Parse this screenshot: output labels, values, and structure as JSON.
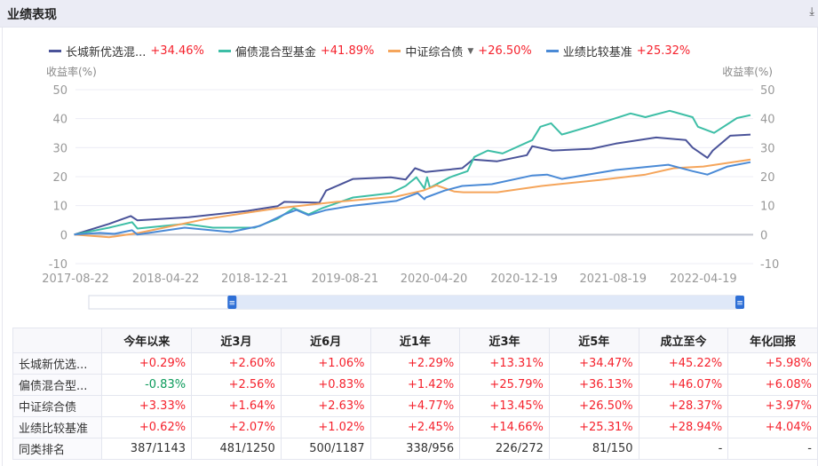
{
  "header": {
    "title": "业绩表现",
    "download_icon": "download-icon"
  },
  "legend": [
    {
      "name": "长城新优选混...",
      "pct": "+34.46%",
      "color": "#4a5399"
    },
    {
      "name": "偏债混合型基金",
      "pct": "+41.89%",
      "color": "#3dbea6"
    },
    {
      "name": "中证综合债",
      "pct": "+26.50%",
      "color": "#f5a55b",
      "has_dropdown": true
    },
    {
      "name": "业绩比较基准",
      "pct": "+25.32%",
      "color": "#4a8ad6"
    }
  ],
  "chart_data": {
    "type": "line",
    "ylabel_left": "收益率(%)",
    "ylabel_right": "收益率(%)",
    "ylim": [
      -10,
      50
    ],
    "yticks": [
      "50",
      "40",
      "30",
      "20",
      "10",
      "0",
      "-10"
    ],
    "xlim": [
      2017.64,
      2022.65
    ],
    "xticks": [
      {
        "label": "2017-08-22",
        "x": 2017.64
      },
      {
        "label": "2018-04-22",
        "x": 2018.31
      },
      {
        "label": "2018-12-21",
        "x": 2018.97
      },
      {
        "label": "2019-08-21",
        "x": 2019.64
      },
      {
        "label": "2020-04-20",
        "x": 2020.3
      },
      {
        "label": "2020-12-19",
        "x": 2020.97
      },
      {
        "label": "2021-08-19",
        "x": 2021.63
      },
      {
        "label": "2022-04-19",
        "x": 2022.3
      }
    ],
    "grid": true,
    "series": [
      {
        "name": "长城新优选混...",
        "color": "#4a5399",
        "points": [
          [
            2017.63,
            0
          ],
          [
            2017.89,
            3.7
          ],
          [
            2018.05,
            6.4
          ],
          [
            2018.1,
            4.9
          ],
          [
            2018.48,
            6
          ],
          [
            2018.92,
            8.2
          ],
          [
            2019.14,
            9.8
          ],
          [
            2019.19,
            11.3
          ],
          [
            2019.45,
            11
          ],
          [
            2019.5,
            15.2
          ],
          [
            2019.7,
            19.2
          ],
          [
            2019.98,
            19.8
          ],
          [
            2020.09,
            19
          ],
          [
            2020.16,
            22.9
          ],
          [
            2020.24,
            21.6
          ],
          [
            2020.51,
            22.9
          ],
          [
            2020.59,
            25.9
          ],
          [
            2020.77,
            25.3
          ],
          [
            2020.99,
            27.4
          ],
          [
            2021.03,
            30.5
          ],
          [
            2021.18,
            29
          ],
          [
            2021.47,
            29.6
          ],
          [
            2021.65,
            31.4
          ],
          [
            2021.95,
            33.5
          ],
          [
            2022.17,
            32.6
          ],
          [
            2022.22,
            30
          ],
          [
            2022.33,
            26.5
          ],
          [
            2022.37,
            29
          ],
          [
            2022.5,
            34.1
          ],
          [
            2022.65,
            34.5
          ]
        ]
      },
      {
        "name": "偏债混合型基金",
        "color": "#3dbea6",
        "points": [
          [
            2017.63,
            0
          ],
          [
            2017.89,
            2.4
          ],
          [
            2018.06,
            4.3
          ],
          [
            2018.1,
            2.1
          ],
          [
            2018.45,
            3.7
          ],
          [
            2018.66,
            2.4
          ],
          [
            2018.97,
            2.4
          ],
          [
            2019.14,
            5.5
          ],
          [
            2019.26,
            9.1
          ],
          [
            2019.37,
            7
          ],
          [
            2019.47,
            9.1
          ],
          [
            2019.7,
            12.8
          ],
          [
            2019.98,
            14.3
          ],
          [
            2020.09,
            16.8
          ],
          [
            2020.17,
            19.8
          ],
          [
            2020.23,
            15.9
          ],
          [
            2020.25,
            19.8
          ],
          [
            2020.27,
            16.2
          ],
          [
            2020.42,
            19.8
          ],
          [
            2020.55,
            21.9
          ],
          [
            2020.6,
            26.8
          ],
          [
            2020.7,
            29
          ],
          [
            2020.81,
            28
          ],
          [
            2021.03,
            32.6
          ],
          [
            2021.09,
            37.2
          ],
          [
            2021.17,
            38.4
          ],
          [
            2021.25,
            34.5
          ],
          [
            2021.47,
            37.5
          ],
          [
            2021.76,
            41.8
          ],
          [
            2021.87,
            40.5
          ],
          [
            2022.05,
            42.7
          ],
          [
            2022.22,
            40.5
          ],
          [
            2022.26,
            37.2
          ],
          [
            2022.38,
            35.1
          ],
          [
            2022.55,
            40.2
          ],
          [
            2022.65,
            41.2
          ]
        ]
      },
      {
        "name": "中证综合债",
        "color": "#f5a55b",
        "points": [
          [
            2017.63,
            0
          ],
          [
            2017.89,
            -0.9
          ],
          [
            2018.11,
            0.6
          ],
          [
            2018.59,
            5.2
          ],
          [
            2018.92,
            7.6
          ],
          [
            2019.14,
            9.1
          ],
          [
            2019.58,
            11.3
          ],
          [
            2020.02,
            13.1
          ],
          [
            2020.22,
            15.2
          ],
          [
            2020.32,
            17
          ],
          [
            2020.45,
            14.9
          ],
          [
            2020.52,
            14.6
          ],
          [
            2020.77,
            14.6
          ],
          [
            2021.1,
            16.8
          ],
          [
            2021.54,
            18.9
          ],
          [
            2021.87,
            20.7
          ],
          [
            2022.08,
            22.9
          ],
          [
            2022.3,
            23.5
          ],
          [
            2022.65,
            25.9
          ]
        ]
      },
      {
        "name": "业绩比较基准",
        "color": "#4a8ad6",
        "points": [
          [
            2017.63,
            0
          ],
          [
            2017.82,
            0.6
          ],
          [
            2017.93,
            0.3
          ],
          [
            2018.06,
            1.5
          ],
          [
            2018.1,
            0
          ],
          [
            2018.45,
            2.4
          ],
          [
            2018.79,
            0.9
          ],
          [
            2019.01,
            3
          ],
          [
            2019.19,
            7
          ],
          [
            2019.28,
            8.5
          ],
          [
            2019.37,
            6.7
          ],
          [
            2019.5,
            8.5
          ],
          [
            2019.7,
            10
          ],
          [
            2020.02,
            11.6
          ],
          [
            2020.18,
            14.3
          ],
          [
            2020.23,
            12.2
          ],
          [
            2020.24,
            12.8
          ],
          [
            2020.38,
            15.2
          ],
          [
            2020.51,
            16.8
          ],
          [
            2020.73,
            17.4
          ],
          [
            2021.03,
            20.4
          ],
          [
            2021.14,
            20.7
          ],
          [
            2021.25,
            19.2
          ],
          [
            2021.65,
            22.3
          ],
          [
            2022.04,
            24.1
          ],
          [
            2022.22,
            21.9
          ],
          [
            2022.33,
            20.7
          ],
          [
            2022.48,
            23.5
          ],
          [
            2022.65,
            25
          ]
        ]
      }
    ]
  },
  "range_selector": {
    "start_fraction": 0.22,
    "end_fraction": 1.0
  },
  "table": {
    "headers": [
      "",
      "今年以来",
      "近3月",
      "近6月",
      "近1年",
      "近3年",
      "近5年",
      "成立至今",
      "年化回报"
    ],
    "rows": [
      {
        "name": "长城新优选...",
        "values": [
          "+0.29%",
          "+2.60%",
          "+1.06%",
          "+2.29%",
          "+13.31%",
          "+34.47%",
          "+45.22%",
          "+5.98%"
        ]
      },
      {
        "name": "偏债混合型...",
        "values": [
          "-0.83%",
          "+2.56%",
          "+0.83%",
          "+1.42%",
          "+25.79%",
          "+36.13%",
          "+46.07%",
          "+6.08%"
        ]
      },
      {
        "name": "中证综合债",
        "values": [
          "+3.33%",
          "+1.64%",
          "+2.63%",
          "+4.77%",
          "+13.45%",
          "+26.50%",
          "+28.37%",
          "+3.97%"
        ]
      },
      {
        "name": "业绩比较基准",
        "values": [
          "+0.62%",
          "+2.07%",
          "+1.02%",
          "+2.45%",
          "+14.66%",
          "+25.31%",
          "+28.94%",
          "+4.04%"
        ]
      },
      {
        "name": "同类排名",
        "values": [
          "387/1143",
          "481/1250",
          "500/1187",
          "338/956",
          "226/272",
          "81/150",
          "-",
          "-"
        ]
      }
    ]
  }
}
